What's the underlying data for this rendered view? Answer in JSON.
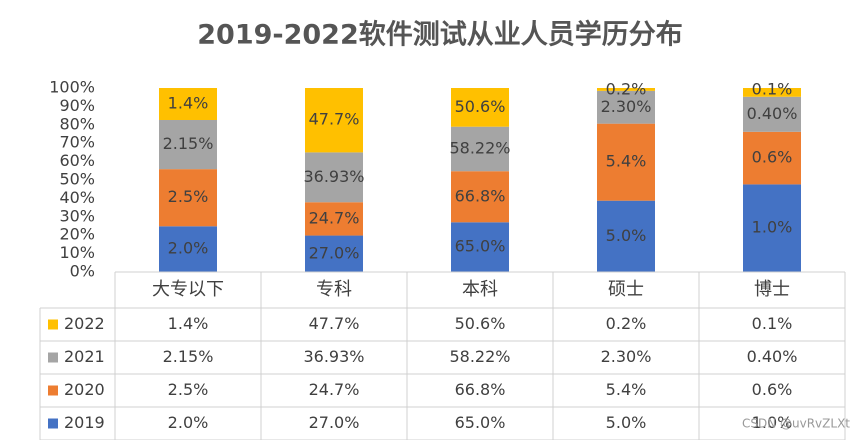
{
  "chart_data": {
    "type": "percent_stacked_bar",
    "title": "2019-2022软件测试从业人员学历分布",
    "categories": [
      "大专以下",
      "专科",
      "本科",
      "硕士",
      "博士"
    ],
    "series": [
      {
        "name": "2019",
        "color": "#4472c4",
        "values": [
          2.0,
          27.0,
          65.0,
          5.0,
          1.0
        ],
        "value_labels": [
          "2.0%",
          "27.0%",
          "65.0%",
          "5.0%",
          "1.0%"
        ]
      },
      {
        "name": "2020",
        "color": "#ed7d31",
        "values": [
          2.5,
          24.7,
          66.8,
          5.4,
          0.6
        ],
        "value_labels": [
          "2.5%",
          "24.7%",
          "66.8%",
          "5.4%",
          "0.6%"
        ]
      },
      {
        "name": "2021",
        "color": "#a5a5a5",
        "values": [
          2.15,
          36.93,
          58.22,
          2.3,
          0.4
        ],
        "value_labels": [
          "2.15%",
          "36.93%",
          "58.22%",
          "2.30%",
          "0.40%"
        ]
      },
      {
        "name": "2022",
        "color": "#ffc000",
        "values": [
          1.4,
          47.7,
          50.6,
          0.2,
          0.1
        ],
        "value_labels": [
          "1.4%",
          "47.7%",
          "50.6%",
          "0.2%",
          "0.1%"
        ]
      }
    ],
    "ylim": [
      0,
      100
    ],
    "yticks": [
      {
        "value": 0,
        "label": "0%"
      },
      {
        "value": 10,
        "label": "10%"
      },
      {
        "value": 20,
        "label": "20%"
      },
      {
        "value": 30,
        "label": "30%"
      },
      {
        "value": 40,
        "label": "40%"
      },
      {
        "value": 50,
        "label": "50%"
      },
      {
        "value": 60,
        "label": "60%"
      },
      {
        "value": 70,
        "label": "70%"
      },
      {
        "value": 80,
        "label": "80%"
      },
      {
        "value": 90,
        "label": "90%"
      },
      {
        "value": 100,
        "label": "100%"
      }
    ],
    "grid": false,
    "watermark": "CSDN @uvRvZLXt"
  }
}
